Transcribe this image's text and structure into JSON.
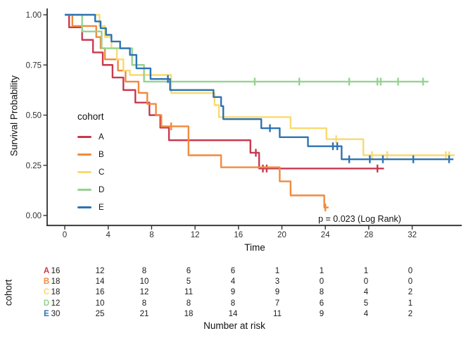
{
  "chart_data": {
    "type": "line",
    "subtype": "kaplan_meier_step",
    "title": "",
    "xlabel": "Time",
    "ylabel": "Survival Probability",
    "legend_title": "cohort",
    "annotation": "p = 0.023 (Log Rank)",
    "xlim": [
      -1.6,
      36.6
    ],
    "ylim": [
      0,
      1
    ],
    "grid": false,
    "legend_position": "inside-left",
    "x_ticks": [
      0,
      4,
      8,
      12,
      16,
      20,
      24,
      28,
      32
    ],
    "x_tick_labels": [
      "0",
      "4",
      "8",
      "12",
      "16",
      "20",
      "24",
      "28",
      "32"
    ],
    "y_ticks": [
      0,
      0.25,
      0.5,
      0.75,
      1
    ],
    "y_tick_labels": [
      "0.00",
      "0.25",
      "0.50",
      "0.75",
      "1.00"
    ],
    "series": [
      {
        "name": "A",
        "color": "#C8394E",
        "steps": [
          [
            0,
            1.0
          ],
          [
            0.4,
            0.9375
          ],
          [
            1.6,
            0.875
          ],
          [
            2.6,
            0.8125
          ],
          [
            3.5,
            0.75
          ],
          [
            4.4,
            0.6875
          ],
          [
            5.4,
            0.625
          ],
          [
            6.5,
            0.5625
          ],
          [
            7.8,
            0.5
          ],
          [
            8.8,
            0.4375
          ],
          [
            9.6,
            0.375
          ],
          [
            17.1,
            0.3125
          ],
          [
            17.9,
            0.234
          ]
        ],
        "censor_times": [
          17.6,
          18.25,
          18.6,
          28.8
        ],
        "end_time": 29.4
      },
      {
        "name": "B",
        "color": "#F08A3D",
        "steps": [
          [
            0,
            1.0
          ],
          [
            0.7,
            0.944
          ],
          [
            2.9,
            0.889
          ],
          [
            3.3,
            0.833
          ],
          [
            3.7,
            0.778
          ],
          [
            4.9,
            0.722
          ],
          [
            5.6,
            0.667
          ],
          [
            6.8,
            0.611
          ],
          [
            7.6,
            0.556
          ],
          [
            8.4,
            0.5
          ],
          [
            8.9,
            0.444
          ],
          [
            11.4,
            0.3
          ],
          [
            14.4,
            0.24
          ],
          [
            19.8,
            0.17
          ],
          [
            20.8,
            0.1
          ],
          [
            23.9,
            0.04
          ]
        ],
        "censor_times": [
          9.8,
          24.0
        ],
        "end_time": 24.3
      },
      {
        "name": "C",
        "color": "#F8DA6F",
        "steps": [
          [
            0,
            1.0
          ],
          [
            3.2,
            0.944
          ],
          [
            3.7,
            0.889
          ],
          [
            4.3,
            0.833
          ],
          [
            4.8,
            0.778
          ],
          [
            5.4,
            0.722
          ],
          [
            6.0,
            0.7
          ],
          [
            9.8,
            0.61
          ],
          [
            13.8,
            0.55
          ],
          [
            14.2,
            0.49
          ],
          [
            20.8,
            0.435
          ],
          [
            24.1,
            0.38
          ],
          [
            27.5,
            0.3
          ]
        ],
        "censor_times": [
          25.0,
          28.3,
          29.7,
          35.1,
          35.4
        ],
        "end_time": 35.9
      },
      {
        "name": "D",
        "color": "#94D38F",
        "steps": [
          [
            0,
            1.0
          ],
          [
            1.6,
            0.917
          ],
          [
            3.4,
            0.833
          ],
          [
            6.2,
            0.75
          ],
          [
            7.3,
            0.667
          ]
        ],
        "censor_times": [
          17.5,
          21.6,
          26.2,
          28.8,
          29.1,
          30.7,
          33.0
        ],
        "end_time": 33.5
      },
      {
        "name": "E",
        "color": "#2E73B2",
        "steps": [
          [
            0,
            1.0
          ],
          [
            2.8,
            0.967
          ],
          [
            3.3,
            0.933
          ],
          [
            3.8,
            0.9
          ],
          [
            4.3,
            0.867
          ],
          [
            5.1,
            0.833
          ],
          [
            6.0,
            0.8
          ],
          [
            6.6,
            0.733
          ],
          [
            7.9,
            0.68
          ],
          [
            9.7,
            0.625
          ],
          [
            13.7,
            0.59
          ],
          [
            14.4,
            0.545
          ],
          [
            14.6,
            0.48
          ],
          [
            18.1,
            0.435
          ],
          [
            19.8,
            0.39
          ],
          [
            22.4,
            0.345
          ],
          [
            25.5,
            0.28
          ]
        ],
        "censor_times": [
          9.5,
          18.9,
          24.7,
          25.1,
          26.2,
          28.1,
          29.3,
          32.1,
          35.4
        ],
        "end_time": 35.8
      }
    ],
    "risk_table": {
      "label": "cohort",
      "caption": "Number at risk",
      "times": [
        0,
        4,
        8,
        12,
        16,
        20,
        24,
        28,
        32
      ],
      "rows": [
        {
          "name": "A",
          "color": "#C8394E",
          "counts": [
            16,
            12,
            8,
            6,
            6,
            1,
            1,
            1,
            0
          ]
        },
        {
          "name": "B",
          "color": "#F08A3D",
          "counts": [
            18,
            14,
            10,
            5,
            4,
            3,
            0,
            0,
            0
          ]
        },
        {
          "name": "C",
          "color": "#F8DA6F",
          "counts": [
            18,
            16,
            12,
            11,
            9,
            9,
            8,
            4,
            2
          ]
        },
        {
          "name": "D",
          "color": "#94D38F",
          "counts": [
            12,
            10,
            8,
            8,
            8,
            7,
            6,
            5,
            1
          ]
        },
        {
          "name": "E",
          "color": "#2E73B2",
          "counts": [
            30,
            25,
            21,
            18,
            14,
            11,
            9,
            4,
            2
          ]
        }
      ]
    }
  }
}
